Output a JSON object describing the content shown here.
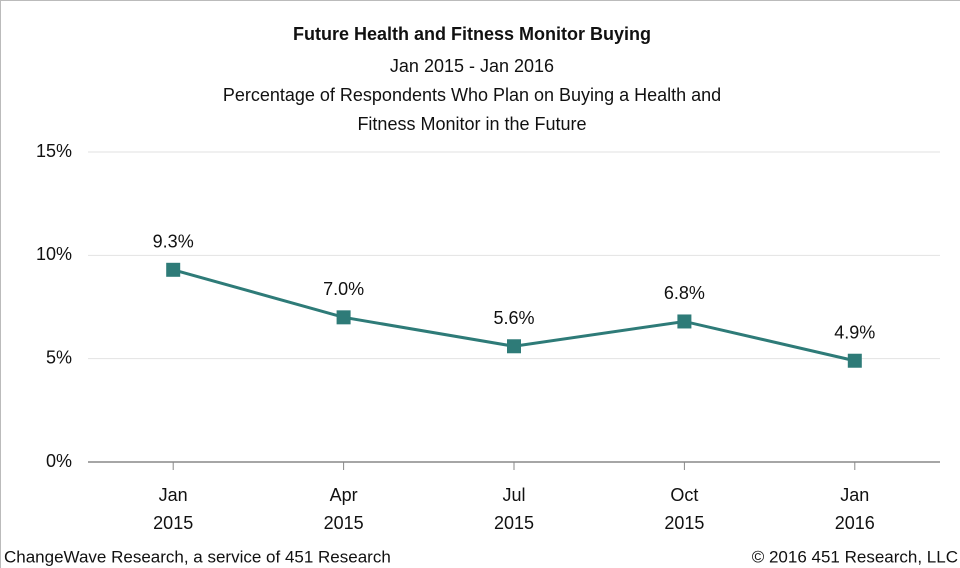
{
  "chart_data": {
    "type": "line",
    "title": "Future Health and Fitness Monitor Buying",
    "subtitle": "Jan 2015 - Jan 2016",
    "description": [
      "Percentage of Respondents Who Plan on Buying a Health and",
      "Fitness Monitor in the Future"
    ],
    "categories": [
      "Jan 2015",
      "Apr 2015",
      "Jul 2015",
      "Oct 2015",
      "Jan 2016"
    ],
    "series": [
      {
        "name": "Respondents",
        "color": "#2e7b78",
        "values": [
          9.3,
          7.0,
          5.6,
          6.8,
          4.9
        ],
        "value_labels": [
          "9.3%",
          "7.0%",
          "5.6%",
          "6.8%",
          "4.9%"
        ]
      }
    ],
    "ylim": [
      0,
      15
    ],
    "yticks": [
      {
        "value": 0,
        "label": "0%"
      },
      {
        "value": 5,
        "label": "5%"
      },
      {
        "value": 10,
        "label": "10%"
      },
      {
        "value": 15,
        "label": "15%"
      }
    ],
    "grid": true,
    "source": "ChangeWave Research, a service of 451 Research",
    "copyright": "© 2016 451 Research, LLC"
  }
}
